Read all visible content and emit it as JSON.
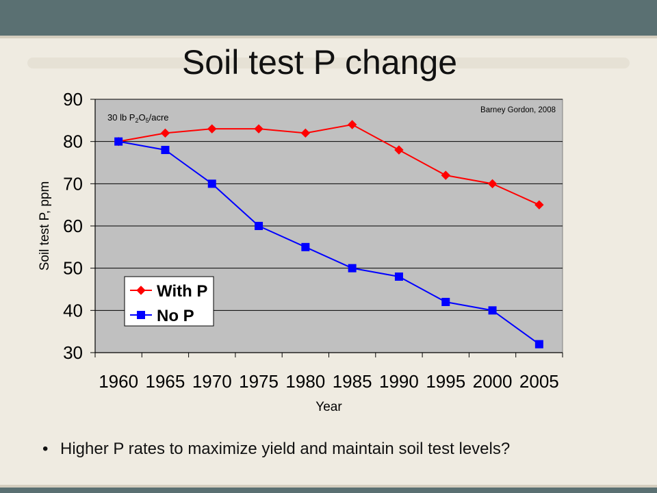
{
  "slide": {
    "title": "Soil test P change",
    "bullet": "Higher P rates to maximize yield and maintain soil test levels?",
    "bullet_marker": "•"
  },
  "colors": {
    "header_bar": "#5A7072",
    "background": "#EFEBE1",
    "plot_area": "#C0C0C0",
    "with_p": "#FF0000",
    "no_p": "#0000FF"
  },
  "chart_data": {
    "type": "line",
    "title": "",
    "xlabel": "Year",
    "ylabel": "Soil test P, ppm",
    "categories": [
      "1960",
      "1965",
      "1970",
      "1975",
      "1980",
      "1985",
      "1990",
      "1995",
      "2000",
      "2005"
    ],
    "ylim": [
      30,
      90
    ],
    "yticks": [
      30,
      40,
      50,
      60,
      70,
      80,
      90
    ],
    "grid": true,
    "legend_position": "bottom-left",
    "annotation_rate": {
      "prefix": "30 lb P",
      "sub1": "2",
      "mid": "O",
      "sub2": "5",
      "suffix": "/acre"
    },
    "annotation_source": "Barney Gordon, 2008",
    "series": [
      {
        "name": "With P",
        "marker": "diamond",
        "color": "#FF0000",
        "values": [
          80,
          82,
          83,
          83,
          82,
          84,
          78,
          72,
          70,
          65
        ]
      },
      {
        "name": "No P",
        "marker": "square",
        "color": "#0000FF",
        "values": [
          80,
          78,
          70,
          60,
          55,
          50,
          48,
          42,
          40,
          32
        ]
      }
    ]
  }
}
